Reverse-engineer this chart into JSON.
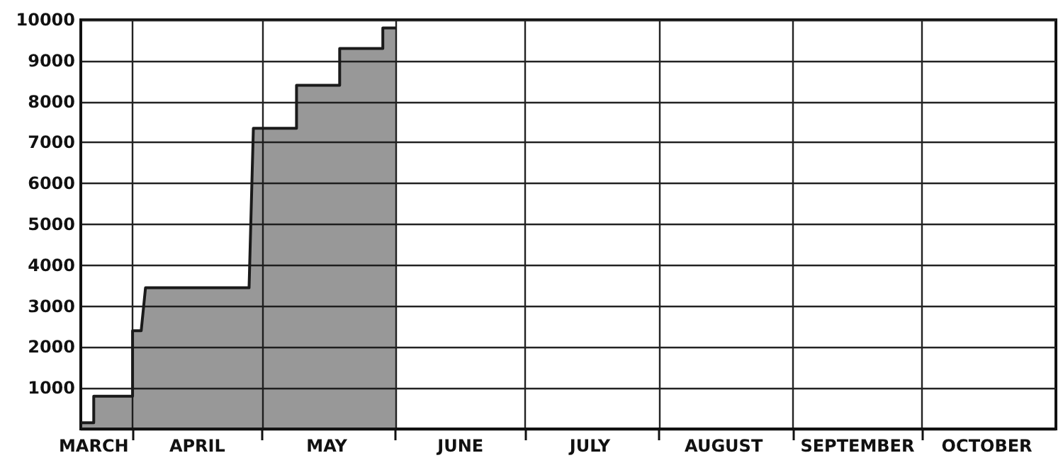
{
  "chart_data": {
    "type": "area",
    "x": [
      "--03-20",
      "--03-23",
      "--03-23",
      "--04-01",
      "--04-01",
      "--04-03",
      "--04-04",
      "--04-28",
      "--04-29",
      "--05-09",
      "--05-09",
      "--05-19",
      "--05-19",
      "--05-29",
      "--05-29",
      "--06-01"
    ],
    "series": [
      {
        "color": "#1a1a1a",
        "values": [
          150,
          150,
          800,
          800,
          2400,
          2400,
          3450,
          3450,
          7350,
          7350,
          8400,
          8400,
          9300,
          9300,
          9800,
          9800
        ]
      }
    ],
    "xlim": [
      "--03-20",
      "--11-01"
    ],
    "xticks": [
      {
        "value": "--04-01",
        "label": null
      },
      {
        "value": "--05-01",
        "label": null
      },
      {
        "value": "--06-01",
        "label": null
      },
      {
        "value": "--07-01",
        "label": null
      },
      {
        "value": "--08-01",
        "label": null
      },
      {
        "value": "--09-01",
        "label": null
      },
      {
        "value": "--10-01",
        "label": null
      },
      {
        "value": "--03-23",
        "label": "MARCH"
      },
      {
        "value": "--04-16",
        "label": "APRIL"
      },
      {
        "value": "--05-16",
        "label": "MAY"
      },
      {
        "value": "--06-16",
        "label": "JUNE"
      },
      {
        "value": "--07-16",
        "label": "JULY"
      },
      {
        "value": "--08-16",
        "label": "AUGUST"
      },
      {
        "value": "--09-16",
        "label": "SEPTEMBER"
      },
      {
        "value": "--10-16",
        "label": "OCTOBER"
      }
    ],
    "ylim": [
      0,
      10000
    ],
    "yticks": [
      {
        "value": 0,
        "label": null
      },
      1000,
      2000,
      3000,
      4000,
      5000,
      6000,
      7000,
      8000,
      9000,
      10000
    ],
    "grid": true,
    "marker": "none"
  }
}
